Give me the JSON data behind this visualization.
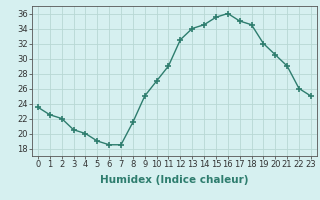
{
  "x": [
    0,
    1,
    2,
    3,
    4,
    5,
    6,
    7,
    8,
    9,
    10,
    11,
    12,
    13,
    14,
    15,
    16,
    17,
    18,
    19,
    20,
    21,
    22,
    23
  ],
  "y": [
    23.5,
    22.5,
    22.0,
    20.5,
    20.0,
    19.0,
    18.5,
    18.5,
    21.5,
    25.0,
    27.0,
    29.0,
    32.5,
    34.0,
    34.5,
    35.5,
    36.0,
    35.0,
    34.5,
    32.0,
    30.5,
    29.0,
    26.0,
    25.0
  ],
  "line_color": "#2e7d6e",
  "marker": "+",
  "marker_size": 4,
  "bg_color": "#d6f0f0",
  "grid_color": "#b8d8d4",
  "xlabel": "Humidex (Indice chaleur)",
  "xlim": [
    -0.5,
    23.5
  ],
  "ylim": [
    17,
    37
  ],
  "yticks": [
    18,
    20,
    22,
    24,
    26,
    28,
    30,
    32,
    34,
    36
  ],
  "xticks": [
    0,
    1,
    2,
    3,
    4,
    5,
    6,
    7,
    8,
    9,
    10,
    11,
    12,
    13,
    14,
    15,
    16,
    17,
    18,
    19,
    20,
    21,
    22,
    23
  ],
  "label_fontsize": 7.5,
  "tick_fontsize": 6.0,
  "linewidth": 1.0,
  "spine_color": "#555555"
}
